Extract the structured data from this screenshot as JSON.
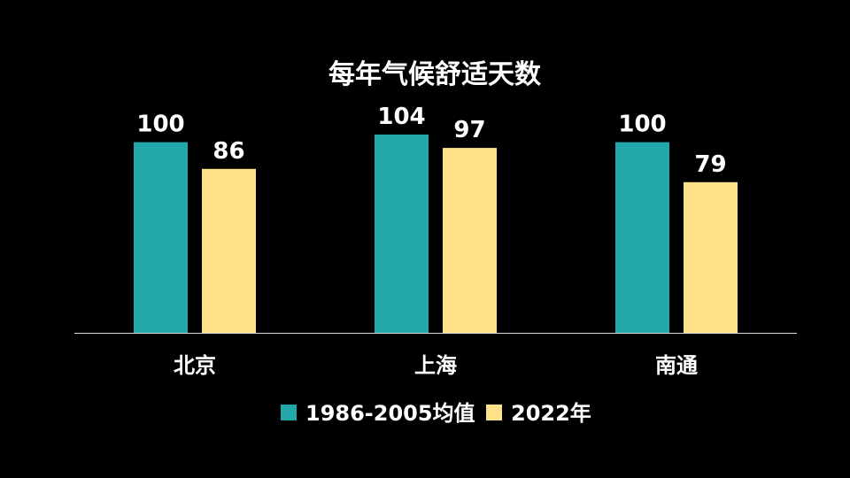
{
  "chart_data": {
    "type": "bar",
    "title": "每年气候舒适天数",
    "categories": [
      "北京",
      "上海",
      "南通"
    ],
    "series": [
      {
        "name": "1986-2005均值",
        "values": [
          100,
          104,
          100
        ],
        "color": "#22A8A8"
      },
      {
        "name": "2022年",
        "values": [
          86,
          97,
          79
        ],
        "color": "#FFE18A"
      }
    ],
    "xlabel": "",
    "ylabel": "",
    "ylim": [
      0,
      104
    ],
    "grid": false,
    "legend": "bottom"
  }
}
